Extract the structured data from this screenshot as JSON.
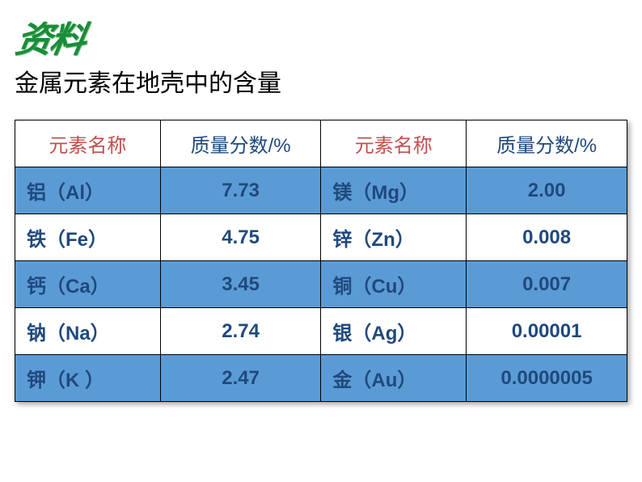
{
  "watermark": "资料",
  "title": "金属元素在地壳中的含量",
  "table": {
    "headers": {
      "name1": "元素名称",
      "val1": "质量分数/%",
      "name2": "元素名称",
      "val2": "质量分数/%"
    },
    "header_name_color": "#c0504d",
    "header_val_color": "#1f497d",
    "cell_text_color": "#1f497d",
    "row_blue_color": "#5b9bd5",
    "row_white_color": "#ffffff",
    "border_color": "#000000",
    "font_size_header": 24,
    "font_size_cell": 24,
    "rows": [
      {
        "bg": "blue",
        "n1": "铝（Al）",
        "v1": "7.73",
        "n2": "镁（Mg）",
        "v2": "2.00"
      },
      {
        "bg": "white",
        "n1": "铁（Fe）",
        "v1": "4.75",
        "n2": "锌（Zn）",
        "v2": "0.008"
      },
      {
        "bg": "blue",
        "n1": "钙（Ca）",
        "v1": "3.45",
        "n2": "铜（Cu）",
        "v2": "0.007"
      },
      {
        "bg": "white",
        "n1": "钠（Na）",
        "v1": "2.74",
        "n2": "银（Ag）",
        "v2": "0.00001"
      },
      {
        "bg": "blue",
        "n1": "钾（K ）",
        "v1": "2.47",
        "n2": "金（Au）",
        "v2": "0.0000005"
      }
    ]
  }
}
